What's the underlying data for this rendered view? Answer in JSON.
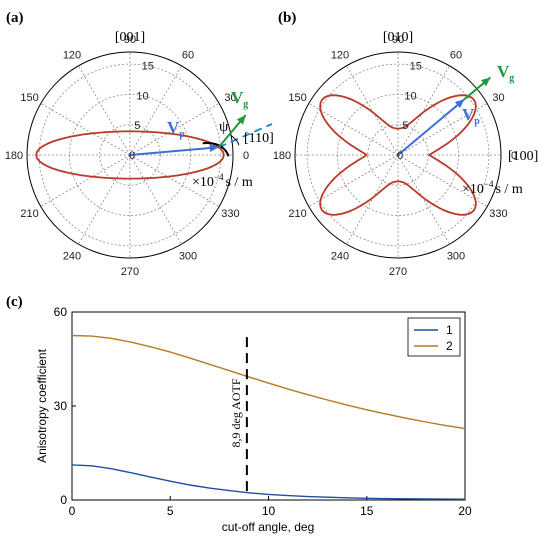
{
  "panels": {
    "a": {
      "label": "(a)",
      "dir_top": "[001]",
      "dir_right": "[110]",
      "angle_labels": [
        "0",
        "30",
        "60",
        "90",
        "120",
        "150",
        "180",
        "210",
        "240",
        "270",
        "300",
        "330"
      ],
      "radial_labels": [
        "0",
        "5",
        "10",
        "15"
      ],
      "unit_base": "×10",
      "unit_exp": "−4",
      "unit_tail": "s / m",
      "vp_main": "V",
      "vp_sub": "p",
      "vg_main": "V",
      "vg_sub": "g",
      "psi": "ψ"
    },
    "b": {
      "label": "(b)",
      "dir_top": "[010]",
      "dir_right": "[100]",
      "angle_labels": [
        "0",
        "30",
        "60",
        "90",
        "120",
        "150",
        "180",
        "210",
        "240",
        "270",
        "300",
        "330"
      ],
      "radial_labels": [
        "0",
        "5",
        "10",
        "15"
      ],
      "unit_base": "×10",
      "unit_exp": "−4",
      "unit_tail": "s / m",
      "vp_main": "V",
      "vp_sub": "p",
      "vg_main": "V",
      "vg_sub": "g"
    },
    "c": {
      "label": "(c)",
      "xlabel": "cut-off angle, deg",
      "ylabel": "Anisotropy coefficient",
      "annotation": "8,9 deg AOTF",
      "x_tick_labels": [
        "0",
        "5",
        "10",
        "15",
        "20"
      ],
      "y_tick_labels": [
        "0",
        "30",
        "60"
      ]
    }
  },
  "colors": {
    "slowness_curve": "#b83a2a",
    "vp_arrow": "#3f6fd6",
    "vg_arrow": "#1e9a3a",
    "series1": "#1f4fa0",
    "series2": "#b87a20",
    "dashed_line": "#1e7fd0"
  },
  "chart_data": [
    {
      "type": "polar",
      "panel": "a",
      "radial_range": [
        0,
        17
      ],
      "radial_ticks": [
        0,
        5,
        10,
        15
      ],
      "angle_ticks_deg": [
        0,
        30,
        60,
        90,
        120,
        150,
        180,
        210,
        240,
        270,
        300,
        330
      ],
      "curve": {
        "kind": "ellipse",
        "r_at_0deg": 15.5,
        "r_at_90deg": 3.9
      },
      "vp_direction_deg": 5,
      "vg_direction_deg": 50
    },
    {
      "type": "polar",
      "panel": "b",
      "radial_range": [
        0,
        17
      ],
      "radial_ticks": [
        0,
        5,
        10,
        15
      ],
      "angle_ticks_deg": [
        0,
        30,
        60,
        90,
        120,
        150,
        180,
        210,
        240,
        270,
        300,
        330
      ],
      "curve": {
        "kind": "four-lobe",
        "lobe_directions_deg": [
          36,
          144,
          216,
          324
        ],
        "r_max": 15.5,
        "r_min": 4.3
      },
      "vp_direction_deg": 40,
      "vg_direction_deg": 40
    },
    {
      "type": "line",
      "panel": "c",
      "xlabel": "cut-off angle, deg",
      "ylabel": "Anisotropy coefficient",
      "xlim": [
        0,
        20
      ],
      "ylim": [
        0,
        60
      ],
      "x_ticks": [
        0,
        5,
        10,
        15,
        20
      ],
      "y_ticks": [
        0,
        30,
        60
      ],
      "legend_position": "top-right",
      "series": [
        {
          "name": "1",
          "x": [
            0,
            1,
            2,
            3,
            4,
            5,
            6,
            7,
            8,
            9,
            10,
            11,
            12,
            13,
            14,
            15,
            16,
            17,
            18,
            19,
            20
          ],
          "y": [
            11.2,
            10.9,
            10.0,
            8.7,
            7.3,
            6.0,
            4.8,
            3.8,
            3.0,
            2.3,
            1.8,
            1.4,
            1.1,
            0.9,
            0.7,
            0.55,
            0.45,
            0.38,
            0.32,
            0.28,
            0.25
          ]
        },
        {
          "name": "2",
          "x": [
            0,
            1,
            2,
            3,
            4,
            5,
            6,
            7,
            8,
            9,
            10,
            11,
            12,
            13,
            14,
            15,
            16,
            17,
            18,
            19,
            20
          ],
          "y": [
            52.5,
            52.3,
            51.6,
            50.4,
            48.9,
            47.2,
            45.3,
            43.3,
            41.3,
            39.3,
            37.3,
            35.4,
            33.6,
            31.9,
            30.3,
            28.8,
            27.4,
            26.1,
            24.9,
            23.8,
            22.8
          ]
        }
      ],
      "vertical_marker_x": 8.9
    }
  ]
}
